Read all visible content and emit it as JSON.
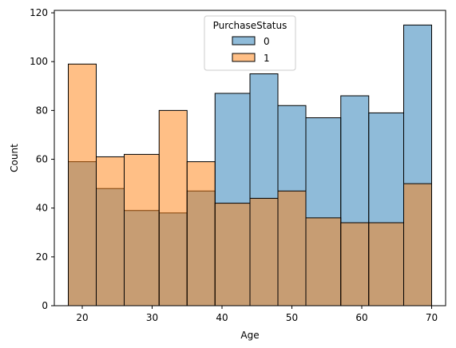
{
  "chart_data": {
    "type": "bar",
    "subtype": "overlaid-histogram",
    "title": "",
    "xlabel": "Age",
    "ylabel": "Count",
    "xlim": [
      16,
      72
    ],
    "ylim": [
      0,
      121
    ],
    "xticks": [
      20,
      30,
      40,
      50,
      60,
      70
    ],
    "yticks": [
      0,
      20,
      40,
      60,
      80,
      100,
      120
    ],
    "bin_edges": [
      18,
      22,
      26,
      31,
      35,
      39,
      44,
      48,
      52,
      57,
      61,
      66,
      70
    ],
    "legend": {
      "title": "PurchaseStatus",
      "position": "top-center"
    },
    "series": [
      {
        "name": "0",
        "color": "#1f77b4",
        "values": [
          59,
          48,
          39,
          38,
          47,
          87,
          95,
          82,
          77,
          86,
          79,
          115
        ]
      },
      {
        "name": "1",
        "color": "#ff7f0e",
        "values": [
          99,
          61,
          62,
          80,
          59,
          42,
          44,
          47,
          36,
          34,
          34,
          50
        ]
      }
    ]
  }
}
